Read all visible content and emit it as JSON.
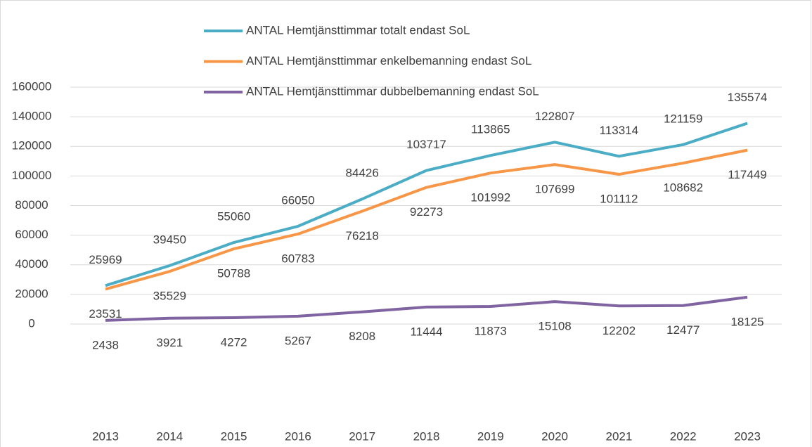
{
  "chart_data": {
    "type": "line",
    "categories": [
      "2013",
      "2014",
      "2015",
      "2016",
      "2017",
      "2018",
      "2019",
      "2020",
      "2021",
      "2022",
      "2023"
    ],
    "series": [
      {
        "name": "ANTAL Hemtjänsttimmar totalt endast SoL",
        "color": "#4bacc6",
        "values": [
          25969,
          39450,
          55060,
          66050,
          84426,
          103717,
          113865,
          122807,
          113314,
          121159,
          135574
        ]
      },
      {
        "name": "ANTAL Hemtjänsttimmar enkelbemanning endast SoL",
        "color": "#f79646",
        "values": [
          23531,
          35529,
          50788,
          60783,
          76218,
          92273,
          101992,
          107699,
          101112,
          108682,
          117449
        ]
      },
      {
        "name": "ANTAL Hemtjänsttimmar dubbelbemanning endast SoL",
        "color": "#8064a2",
        "values": [
          2438,
          3921,
          4272,
          5267,
          8208,
          11444,
          11873,
          15108,
          12202,
          12477,
          18125
        ]
      }
    ],
    "ylim": [
      0,
      160000
    ],
    "yticks": [
      0,
      20000,
      40000,
      60000,
      80000,
      100000,
      120000,
      140000,
      160000
    ],
    "grid": true
  }
}
